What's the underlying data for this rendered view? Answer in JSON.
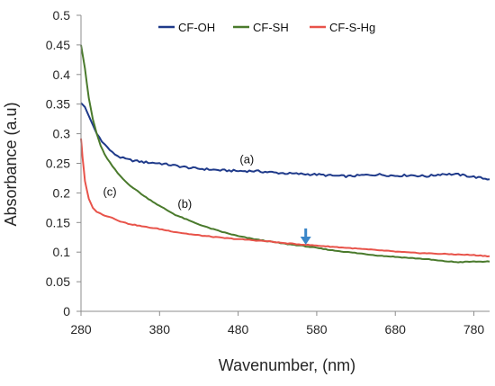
{
  "chart_data": {
    "type": "line",
    "title": "",
    "xlabel": "Wavenumber, (nm)",
    "ylabel": "Absorbance (a.u)",
    "xlim": [
      280,
      800
    ],
    "ylim": [
      0,
      0.5
    ],
    "x_ticks": [
      280,
      380,
      480,
      580,
      680,
      780
    ],
    "y_ticks": [
      0,
      0.05,
      0.1,
      0.15,
      0.2,
      0.25,
      0.3,
      0.35,
      0.4,
      0.45,
      0.5
    ],
    "x_tick_labels": [
      "280",
      "380",
      "480",
      "580",
      "680",
      "780"
    ],
    "y_tick_labels": [
      "0",
      "0.05",
      "0.1",
      "0.15",
      "0.2",
      "0.25",
      "0.3",
      "0.35",
      "0.4",
      "0.45",
      "0.5"
    ],
    "grid": false,
    "legend_position": "top",
    "series": [
      {
        "name": "CF-OH",
        "color": "#1f3a8a",
        "annotation": "(a)",
        "annotation_at": [
          482,
          0.25
        ],
        "x": [
          280,
          285,
          290,
          295,
          300,
          310,
          320,
          330,
          340,
          360,
          380,
          400,
          420,
          440,
          460,
          480,
          500,
          520,
          540,
          560,
          580,
          600,
          620,
          640,
          660,
          680,
          700,
          720,
          740,
          760,
          780,
          800
        ],
        "y": [
          0.352,
          0.345,
          0.33,
          0.315,
          0.3,
          0.282,
          0.268,
          0.26,
          0.256,
          0.252,
          0.25,
          0.246,
          0.242,
          0.24,
          0.238,
          0.237,
          0.237,
          0.235,
          0.233,
          0.232,
          0.231,
          0.229,
          0.228,
          0.23,
          0.231,
          0.229,
          0.23,
          0.228,
          0.232,
          0.231,
          0.227,
          0.223
        ]
      },
      {
        "name": "CF-SH",
        "color": "#4a7a2c",
        "annotation": "(b)",
        "annotation_at": [
          403,
          0.175
        ],
        "x": [
          280,
          285,
          290,
          295,
          300,
          305,
          310,
          320,
          330,
          340,
          360,
          380,
          400,
          420,
          440,
          460,
          480,
          500,
          520,
          540,
          560,
          580,
          600,
          620,
          640,
          660,
          680,
          700,
          720,
          740,
          760,
          780,
          800
        ],
        "y": [
          0.45,
          0.41,
          0.36,
          0.325,
          0.3,
          0.28,
          0.265,
          0.245,
          0.228,
          0.215,
          0.195,
          0.178,
          0.163,
          0.152,
          0.142,
          0.134,
          0.127,
          0.122,
          0.118,
          0.114,
          0.111,
          0.107,
          0.103,
          0.1,
          0.097,
          0.094,
          0.092,
          0.09,
          0.088,
          0.085,
          0.083,
          0.084,
          0.084
        ]
      },
      {
        "name": "CF-S-Hg",
        "color": "#e8534a",
        "annotation": "(c)",
        "annotation_at": [
          308,
          0.195
        ],
        "x": [
          280,
          282,
          285,
          290,
          295,
          300,
          305,
          310,
          320,
          330,
          340,
          360,
          380,
          400,
          420,
          440,
          460,
          480,
          500,
          520,
          540,
          560,
          580,
          600,
          620,
          640,
          660,
          680,
          700,
          720,
          740,
          760,
          780,
          800
        ],
        "y": [
          0.292,
          0.26,
          0.22,
          0.19,
          0.175,
          0.168,
          0.165,
          0.162,
          0.158,
          0.152,
          0.148,
          0.143,
          0.139,
          0.134,
          0.13,
          0.127,
          0.124,
          0.122,
          0.12,
          0.118,
          0.115,
          0.113,
          0.111,
          0.109,
          0.107,
          0.105,
          0.103,
          0.101,
          0.099,
          0.098,
          0.097,
          0.096,
          0.095,
          0.093
        ]
      }
    ],
    "arrow": {
      "color": "#3a86c8",
      "x": 566,
      "y_from": 0.14,
      "y_to": 0.114
    }
  }
}
